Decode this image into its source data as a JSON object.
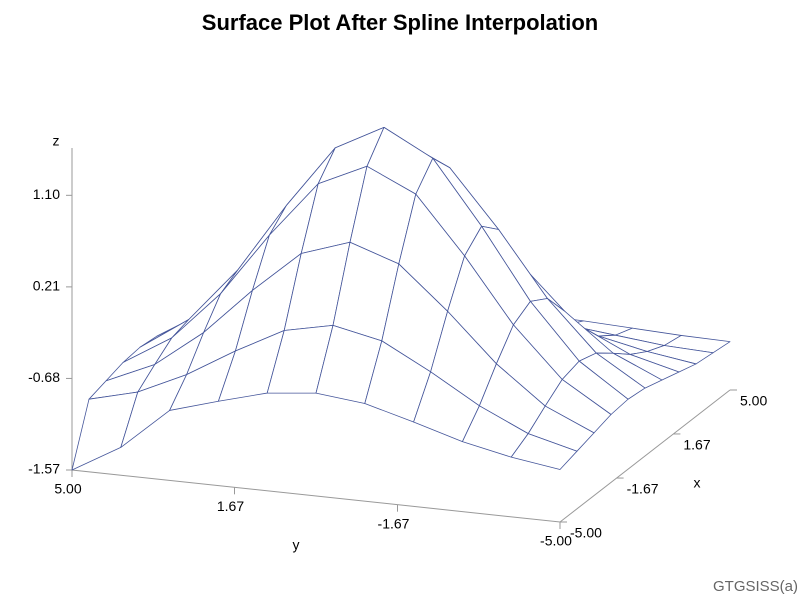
{
  "chart_data": {
    "type": "surface",
    "title": "Surface Plot After Spline Interpolation",
    "footnote": "GTGSISS(a)",
    "xlabel": "x",
    "ylabel": "y",
    "zlabel": "z",
    "color": "#44559a",
    "x": [
      -5,
      -4,
      -3,
      -2,
      -1,
      0,
      1,
      2,
      3,
      4,
      5
    ],
    "y": [
      -5,
      -4,
      -3,
      -2,
      -1,
      0,
      1,
      2,
      3,
      4,
      5
    ],
    "z": [
      [
        -1.06,
        -0.99,
        -0.89,
        -0.75,
        -0.62,
        -0.57,
        -0.62,
        -0.75,
        -0.89,
        -1.3,
        -1.57
      ],
      [
        -1.01,
        -0.89,
        -0.67,
        -0.39,
        -0.14,
        -0.04,
        -0.14,
        -0.39,
        -0.67,
        -0.89,
        -1.01
      ],
      [
        -0.96,
        -0.75,
        -0.39,
        0.07,
        0.48,
        0.64,
        0.48,
        0.07,
        -0.39,
        -0.75,
        -0.96
      ],
      [
        -0.91,
        -0.62,
        -0.14,
        0.48,
        1.03,
        1.25,
        1.03,
        0.48,
        -0.14,
        -0.62,
        -0.91
      ],
      [
        -0.89,
        -0.57,
        -0.04,
        0.64,
        1.25,
        1.5,
        1.25,
        0.64,
        -0.04,
        -0.57,
        -0.89
      ],
      [
        -0.91,
        -0.62,
        -0.14,
        0.48,
        1.03,
        1.25,
        1.03,
        0.48,
        -0.14,
        -0.62,
        -0.91
      ],
      [
        -0.96,
        -0.75,
        -0.39,
        0.07,
        0.48,
        0.64,
        0.48,
        0.07,
        -0.39,
        -0.75,
        -0.96
      ],
      [
        -1.01,
        -0.89,
        -0.67,
        -0.39,
        -0.14,
        -0.04,
        -0.14,
        -0.39,
        -0.67,
        -0.89,
        -1.01
      ],
      [
        -1.06,
        -0.99,
        -0.89,
        -0.75,
        -0.62,
        -0.57,
        -0.62,
        -0.75,
        -0.89,
        -0.99,
        -1.06
      ],
      [
        -1.08,
        -1.06,
        -1.01,
        -0.96,
        -0.91,
        -0.89,
        -0.91,
        -0.96,
        -1.01,
        -1.06,
        -1.08
      ],
      [
        -1.1,
        -1.09,
        -1.07,
        -1.05,
        -1.04,
        -1.03,
        -1.04,
        -1.05,
        -1.07,
        -1.09,
        -1.1
      ]
    ],
    "xlim": [
      -5,
      5
    ],
    "ylim": [
      -5,
      5
    ],
    "zlim": [
      -1.57,
      1.56
    ],
    "xticks": [
      {
        "value": -5,
        "label": "-5.00"
      },
      -1.67,
      1.67,
      {
        "value": 5,
        "label": "5.00"
      }
    ],
    "yticks": [
      {
        "value": 5,
        "label": "5.00"
      },
      1.67,
      -1.67,
      {
        "value": -5,
        "label": "-5.00"
      }
    ],
    "zticks": [
      -1.57,
      -0.68,
      0.21,
      {
        "value": 1.1,
        "label": "1.10"
      }
    ]
  }
}
